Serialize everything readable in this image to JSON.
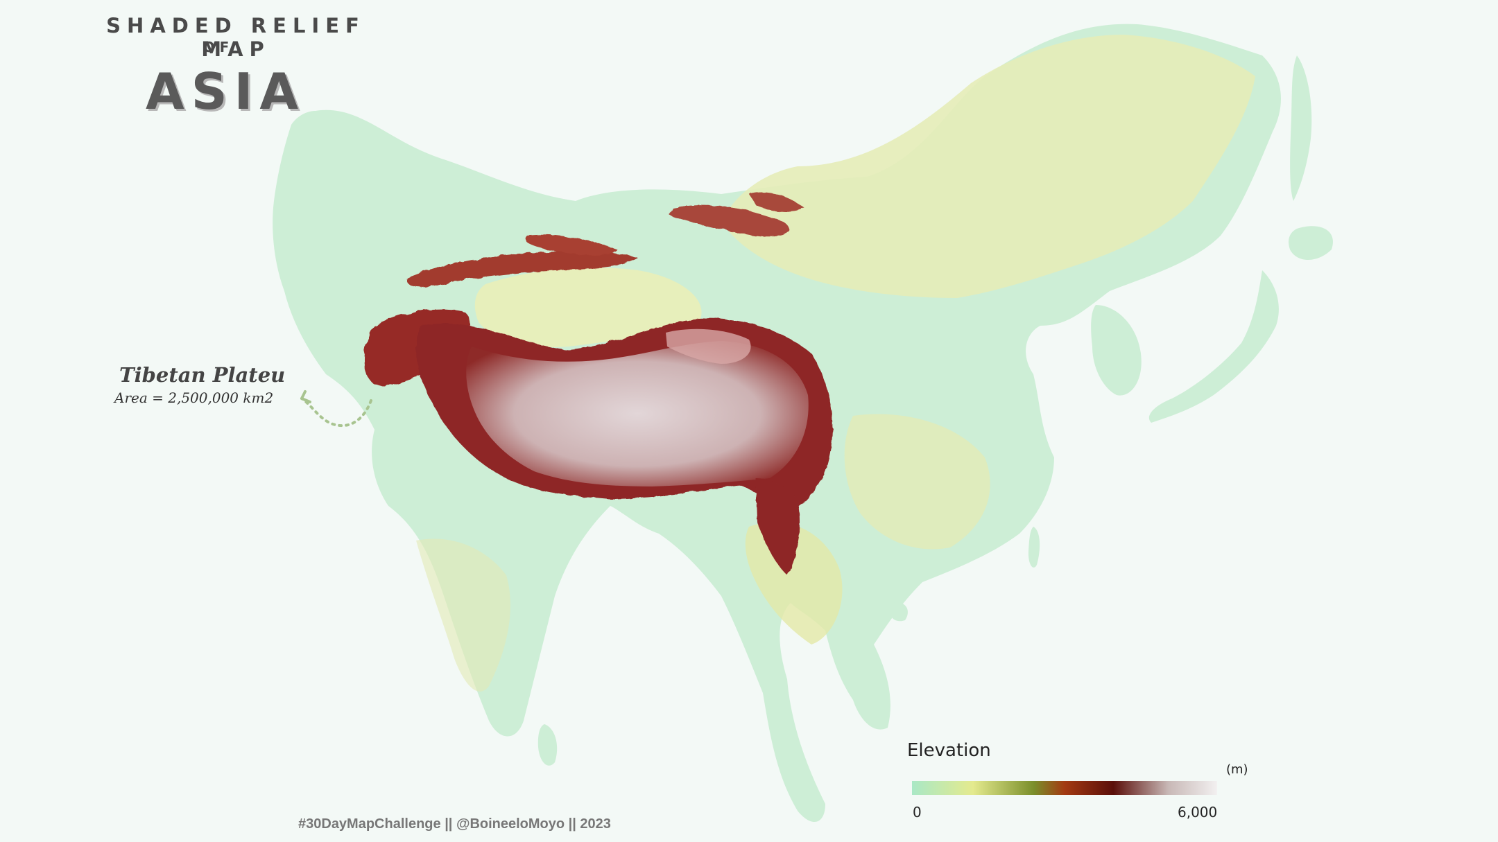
{
  "title": {
    "line1": "SHADED RELIEF MAP",
    "line2": "OF",
    "main": "ASIA"
  },
  "annotation": {
    "label": "Tibetan Plateu",
    "area": "Area = 2,500,000 km2"
  },
  "legend": {
    "title": "Elevation",
    "unit": "(m)",
    "min": "0",
    "max": "6,000",
    "colors": [
      "#a9e8c6",
      "#e4ea8e",
      "#7a8e2a",
      "#a33a12",
      "#5b0f0a",
      "#c8b8b6",
      "#f2f0f0"
    ]
  },
  "credit": "#30DayMapChallenge || @BoineeloMoyo || 2023",
  "colors": {
    "background": "#f3f9f6",
    "lowland": "#cdeed6",
    "midland": "#e6ecb8",
    "highland": "#9c2f2a",
    "plateau": "#d8c7c8",
    "arrow": "#a8c490"
  }
}
